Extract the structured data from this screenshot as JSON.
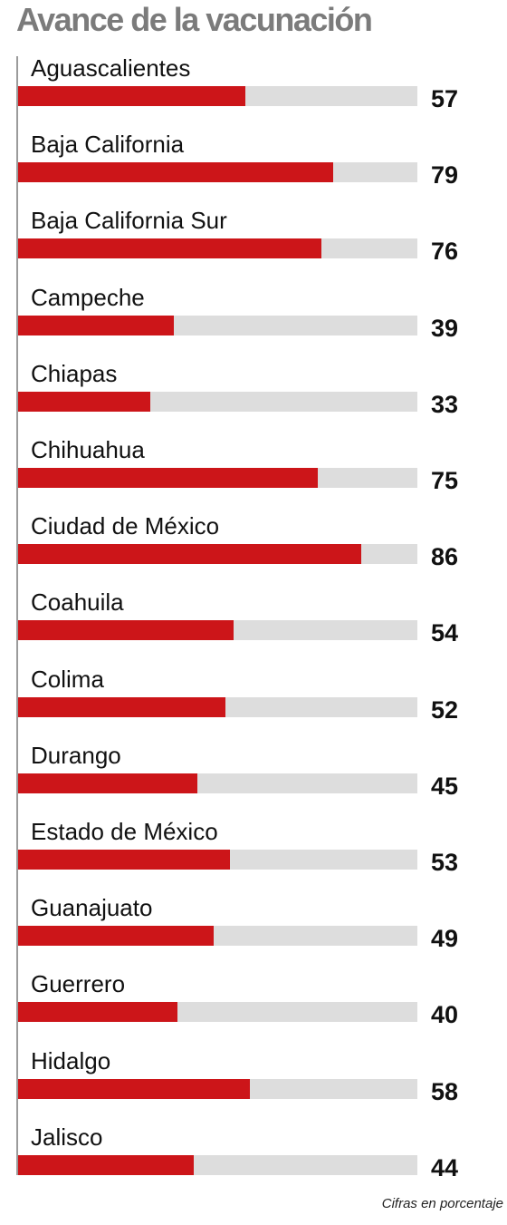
{
  "title": "Avance de la vacunación",
  "note": "Cifras en porcentaje",
  "colors": {
    "bar": "#cc1519",
    "track": "#dddddd",
    "title": "#7b7b7b"
  },
  "chart_data": {
    "type": "bar",
    "orientation": "horizontal",
    "title": "Avance de la vacunación",
    "categories": [
      "Aguascalientes",
      "Baja California",
      "Baja California Sur",
      "Campeche",
      "Chiapas",
      "Chihuahua",
      "Ciudad de México",
      "Coahuila",
      "Colima",
      "Durango",
      "Estado de México",
      "Guanajuato",
      "Guerrero",
      "Hidalgo",
      "Jalisco"
    ],
    "values": [
      57,
      79,
      76,
      39,
      33,
      75,
      86,
      54,
      52,
      45,
      53,
      49,
      40,
      58,
      44
    ],
    "xlim": [
      0,
      100
    ],
    "grid": false,
    "legend": "none"
  }
}
